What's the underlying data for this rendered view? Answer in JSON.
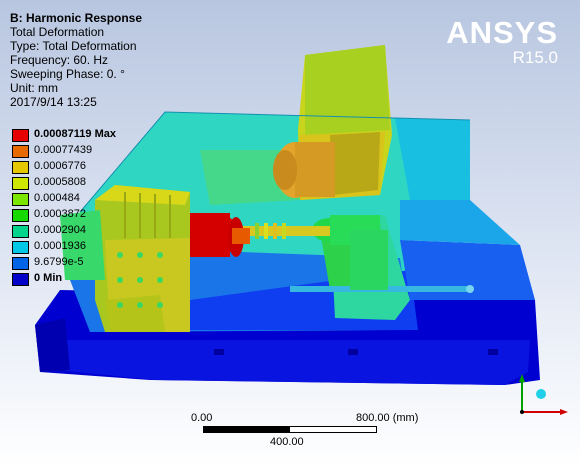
{
  "info": {
    "title": "B: Harmonic Response",
    "result": "Total Deformation",
    "type": "Type: Total Deformation",
    "frequency": "Frequency: 60. Hz",
    "phase": "Sweeping Phase: 0. °",
    "unit": "Unit: mm",
    "timestamp": "2017/9/14 13:25"
  },
  "legend": {
    "items": [
      {
        "label": "0.00087119 Max",
        "color": "#e60000",
        "bold": true
      },
      {
        "label": "0.00077439",
        "color": "#e66a00",
        "bold": false
      },
      {
        "label": "0.0006776",
        "color": "#e6c800",
        "bold": false
      },
      {
        "label": "0.0005808",
        "color": "#cfe600",
        "bold": false
      },
      {
        "label": "0.000484",
        "color": "#7be600",
        "bold": false
      },
      {
        "label": "0.0003872",
        "color": "#16d900",
        "bold": false
      },
      {
        "label": "0.0002904",
        "color": "#00d58b",
        "bold": false
      },
      {
        "label": "0.0001936",
        "color": "#00c8e6",
        "bold": false
      },
      {
        "label": "9.6799e-5",
        "color": "#0064e6",
        "bold": false
      },
      {
        "label": "0 Min",
        "color": "#0000c8",
        "bold": true
      }
    ]
  },
  "brand": {
    "logo": "ANSYS",
    "version": "R15.0"
  },
  "scale_bar": {
    "start_label": "0.00",
    "end_label": "800.00 (mm)",
    "mid_label": "400.00"
  },
  "colors": {
    "bg_top": "#b8c6e0",
    "bg_bottom": "#ffffff",
    "brand_text": "#ffffff"
  }
}
